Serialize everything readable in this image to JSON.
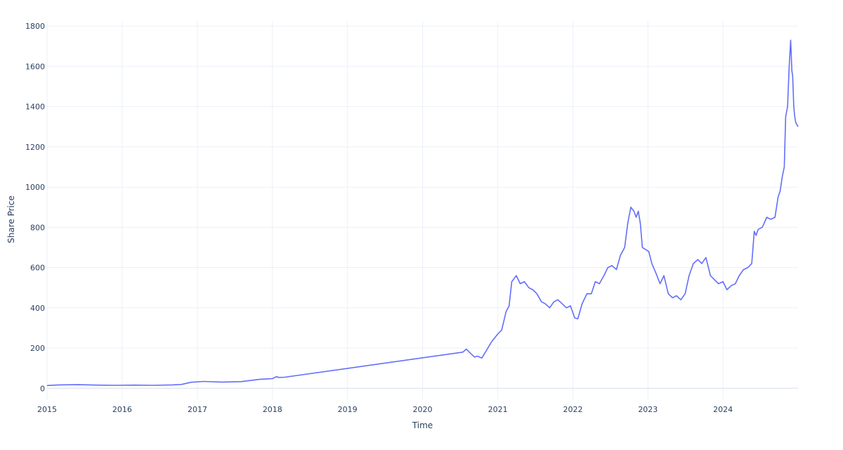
{
  "chart_data": {
    "type": "line",
    "title": "",
    "xlabel": "Time",
    "ylabel": "Share Price",
    "xlim": [
      "2015-01-01",
      "2024-12-31"
    ],
    "ylim": [
      -55,
      1825
    ],
    "x_ticks": [
      "2015",
      "2016",
      "2017",
      "2018",
      "2019",
      "2020",
      "2021",
      "2022",
      "2023",
      "2024"
    ],
    "y_ticks": [
      0,
      200,
      400,
      600,
      800,
      1000,
      1200,
      1400,
      1600,
      1800
    ],
    "grid": true,
    "legend": "none",
    "series_color": "#636efa",
    "series": [
      {
        "x": [
          "2015-01-01",
          "2015-03-01",
          "2015-06-01",
          "2015-09-01",
          "2015-12-01",
          "2016-03-01",
          "2016-06-01",
          "2016-09-01",
          "2016-10-15",
          "2016-11-01",
          "2016-12-01",
          "2017-02-01",
          "2017-05-01",
          "2017-08-01",
          "2017-11-01",
          "2018-01-01",
          "2018-01-20",
          "2018-02-01",
          "2018-03-01",
          "2020-07-15",
          "2020-08-01",
          "2020-08-20",
          "2020-09-10",
          "2020-09-25",
          "2020-10-15",
          "2020-11-05",
          "2020-12-01",
          "2021-01-01",
          "2021-01-20",
          "2021-02-10",
          "2021-02-25",
          "2021-03-10",
          "2021-04-01",
          "2021-04-20",
          "2021-05-10",
          "2021-06-01",
          "2021-06-20",
          "2021-07-10",
          "2021-08-01",
          "2021-08-20",
          "2021-09-10",
          "2021-10-01",
          "2021-10-20",
          "2021-11-10",
          "2021-12-01",
          "2021-12-20",
          "2022-01-10",
          "2022-01-25",
          "2022-02-15",
          "2022-03-10",
          "2022-04-01",
          "2022-04-20",
          "2022-05-10",
          "2022-06-01",
          "2022-06-20",
          "2022-07-10",
          "2022-08-01",
          "2022-08-20",
          "2022-09-10",
          "2022-09-25",
          "2022-10-10",
          "2022-10-25",
          "2022-11-05",
          "2022-11-15",
          "2022-11-25",
          "2022-12-05",
          "2022-12-20",
          "2023-01-05",
          "2023-01-20",
          "2023-02-10",
          "2023-03-01",
          "2023-03-20",
          "2023-04-10",
          "2023-05-01",
          "2023-05-20",
          "2023-06-10",
          "2023-07-01",
          "2023-07-20",
          "2023-08-10",
          "2023-09-01",
          "2023-09-20",
          "2023-10-10",
          "2023-11-01",
          "2023-11-20",
          "2023-12-10",
          "2024-01-01",
          "2024-01-20",
          "2024-02-10",
          "2024-03-01",
          "2024-03-20",
          "2024-04-10",
          "2024-05-01",
          "2024-05-20",
          "2024-06-01",
          "2024-06-10",
          "2024-06-20",
          "2024-07-10",
          "2024-08-01",
          "2024-08-20",
          "2024-09-10",
          "2024-09-25",
          "2024-10-05",
          "2024-10-15",
          "2024-10-25",
          "2024-11-01",
          "2024-11-10",
          "2024-11-18",
          "2024-11-25",
          "2024-12-01",
          "2024-12-05",
          "2024-12-10",
          "2024-12-15",
          "2024-12-20",
          "2024-12-31"
        ],
        "values": [
          14,
          17,
          18,
          16,
          15,
          16,
          15,
          17,
          19,
          23,
          30,
          34,
          31,
          33,
          45,
          48,
          58,
          54,
          55,
          180,
          195,
          175,
          155,
          160,
          150,
          185,
          230,
          270,
          290,
          380,
          410,
          530,
          560,
          520,
          530,
          500,
          490,
          470,
          430,
          420,
          400,
          430,
          440,
          420,
          400,
          410,
          350,
          345,
          420,
          470,
          470,
          530,
          520,
          560,
          600,
          610,
          590,
          660,
          700,
          820,
          900,
          880,
          850,
          880,
          820,
          700,
          690,
          680,
          620,
          570,
          520,
          560,
          470,
          450,
          460,
          440,
          470,
          560,
          620,
          640,
          620,
          650,
          560,
          540,
          520,
          530,
          490,
          510,
          520,
          560,
          590,
          600,
          620,
          780,
          760,
          790,
          800,
          850,
          840,
          850,
          950,
          980,
          1050,
          1100,
          1350,
          1400,
          1600,
          1730,
          1580,
          1550,
          1400,
          1350,
          1320,
          1300
        ]
      }
    ]
  }
}
